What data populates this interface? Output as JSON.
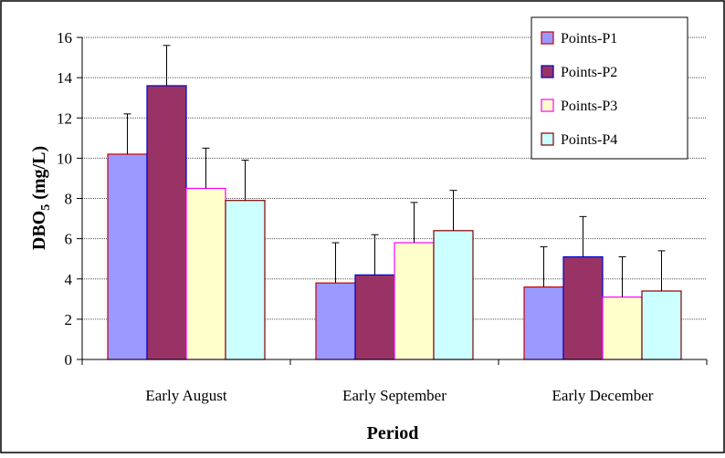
{
  "chart_data": {
    "type": "bar",
    "categories": [
      "Early August",
      "Early September",
      "Early December"
    ],
    "series": [
      {
        "name": "Points-P1",
        "values": [
          10.2,
          3.8,
          3.6
        ],
        "errors": [
          2.0,
          2.0,
          2.0
        ],
        "fill": "#9999ff",
        "stroke": "#cc0000"
      },
      {
        "name": "Points-P2",
        "values": [
          13.6,
          4.2,
          5.1
        ],
        "errors": [
          2.0,
          2.0,
          2.0
        ],
        "fill": "#993366",
        "stroke": "#0000cc"
      },
      {
        "name": "Points-P3",
        "values": [
          8.5,
          5.8,
          3.1
        ],
        "errors": [
          2.0,
          2.0,
          2.0
        ],
        "fill": "#ffffcc",
        "stroke": "#ff00ff"
      },
      {
        "name": "Points-P4",
        "values": [
          7.9,
          6.4,
          3.4
        ],
        "errors": [
          2.0,
          2.0,
          2.0
        ],
        "fill": "#ccffff",
        "stroke": "#800000"
      }
    ],
    "title": "",
    "xlabel": "Period",
    "ylabel": "DBO5 (mg/L)",
    "ylabel_base": "DBO",
    "ylabel_sub": "5",
    "ylabel_unit": " (mg/L)",
    "ylim": [
      0,
      16
    ],
    "yticks": [
      0,
      2,
      4,
      6,
      8,
      10,
      12,
      14,
      16
    ],
    "grid": true,
    "legend_position": "top-right"
  }
}
